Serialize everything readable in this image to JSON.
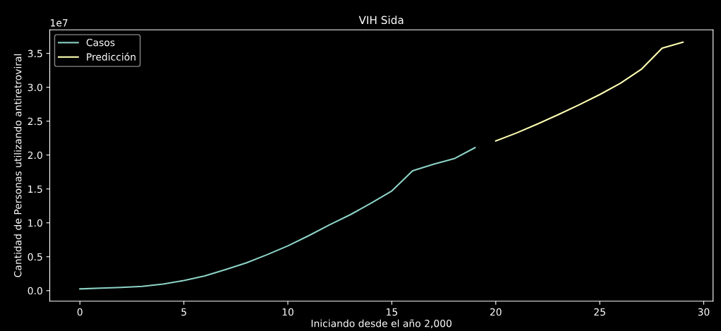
{
  "chart_data": {
    "type": "line",
    "title": "VIH Sida",
    "xlabel": "Iniciando desde el año 2,000",
    "ylabel": "Cantidad de Personas utilizando antiretroviral",
    "annotations": [
      "1e7"
    ],
    "series": [
      {
        "name": "Casos",
        "color": "#8dd3c7",
        "x": [
          0,
          1,
          2,
          3,
          4,
          5,
          6,
          7,
          8,
          9,
          10,
          11,
          12,
          13,
          14,
          15,
          16,
          17,
          18,
          19
        ],
        "values": [
          0.026,
          0.037,
          0.048,
          0.063,
          0.097,
          0.149,
          0.216,
          0.31,
          0.41,
          0.53,
          0.66,
          0.81,
          0.97,
          1.12,
          1.29,
          1.47,
          1.767,
          1.864,
          1.947,
          2.109
        ]
      },
      {
        "name": "Predicción",
        "color": "#feffb3",
        "x": [
          20,
          21,
          22,
          23,
          24,
          25,
          26,
          27,
          28,
          29
        ],
        "values": [
          2.209,
          2.326,
          2.457,
          2.595,
          2.74,
          2.892,
          3.061,
          3.265,
          3.576,
          3.666
        ]
      }
    ],
    "xlim": [
      -1.45,
      30.45
    ],
    "ylim": [
      -0.156,
      3.848
    ],
    "xticks": [
      0,
      5,
      10,
      15,
      20,
      25,
      30
    ],
    "yticks": [
      {
        "value": 0,
        "label": "0.0"
      },
      {
        "value": 0.5,
        "label": "0.5"
      },
      {
        "value": 1,
        "label": "1.0"
      },
      {
        "value": 1.5,
        "label": "1.5"
      },
      {
        "value": 2,
        "label": "2.0"
      },
      {
        "value": 2.5,
        "label": "2.5"
      },
      {
        "value": 3,
        "label": "3.0"
      },
      {
        "value": 3.5,
        "label": "3.5"
      }
    ],
    "legend": "top left",
    "grid": false
  }
}
